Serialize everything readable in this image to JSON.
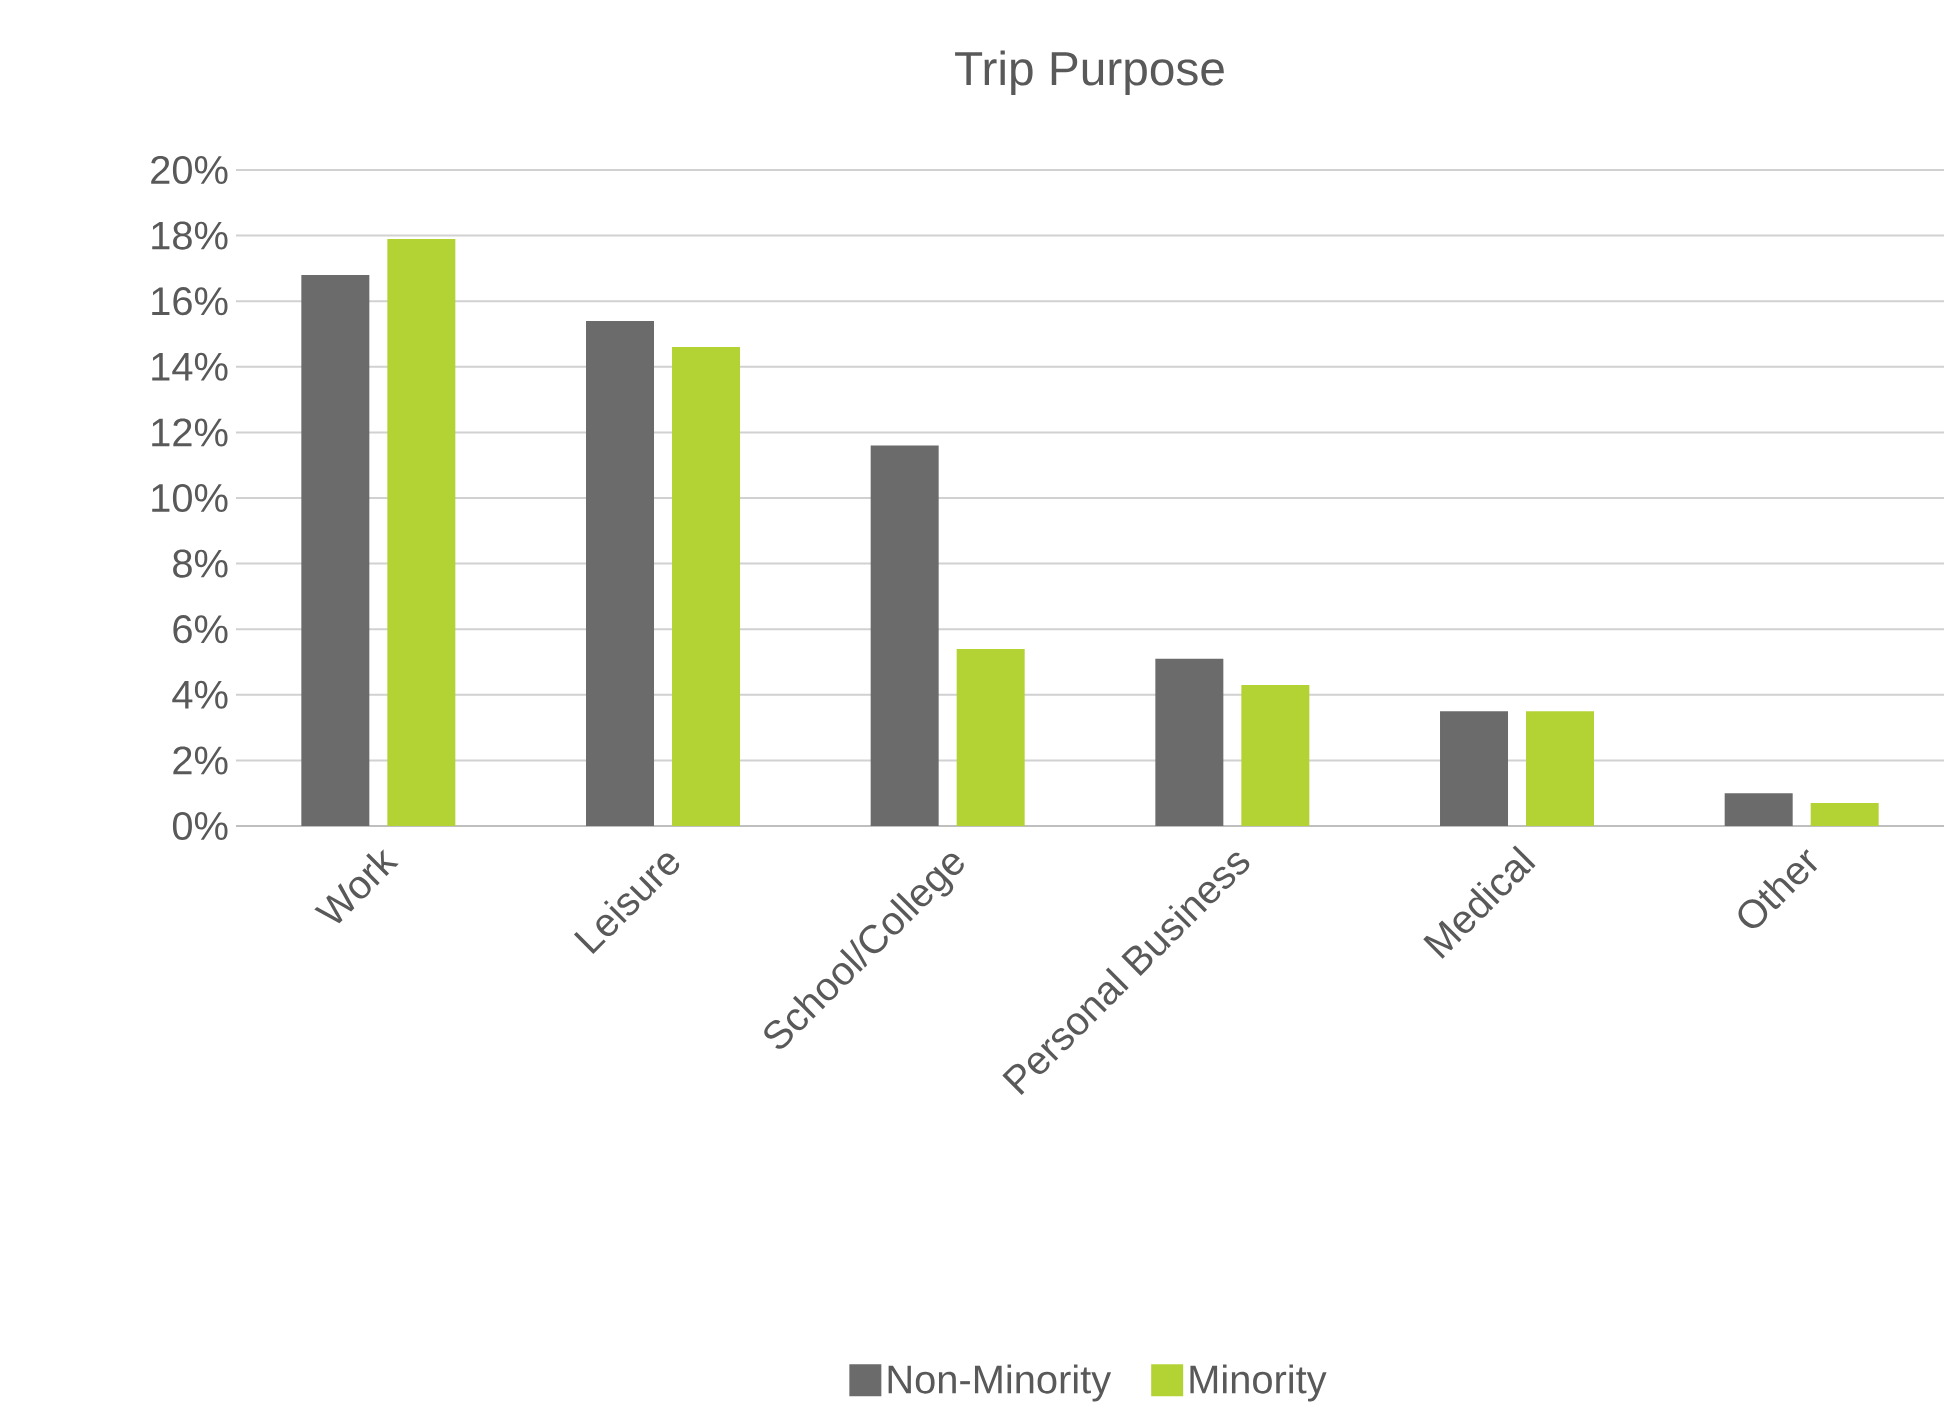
{
  "chart_data": {
    "type": "bar",
    "title": "Trip Purpose",
    "categories": [
      "Work",
      "Leisure",
      "School/College",
      "Personal Business",
      "Medical",
      "Other"
    ],
    "series": [
      {
        "name": "Non-Minority",
        "color": "#6b6b6b",
        "values": [
          16.8,
          15.4,
          11.6,
          5.1,
          3.5,
          1.0
        ]
      },
      {
        "name": "Minority",
        "color": "#b3d335",
        "values": [
          17.9,
          14.6,
          5.4,
          4.3,
          3.5,
          0.7
        ]
      }
    ],
    "ylim": [
      0,
      20
    ],
    "yticks": [
      {
        "value": 0,
        "label": "0%"
      },
      {
        "value": 2,
        "label": "2%"
      },
      {
        "value": 4,
        "label": "4%"
      },
      {
        "value": 6,
        "label": "6%"
      },
      {
        "value": 8,
        "label": "8%"
      },
      {
        "value": 10,
        "label": "10%"
      },
      {
        "value": 12,
        "label": "12%"
      },
      {
        "value": 14,
        "label": "14%"
      },
      {
        "value": 16,
        "label": "16%"
      },
      {
        "value": 18,
        "label": "18%"
      },
      {
        "value": 20,
        "label": "20%"
      }
    ],
    "grid": "y",
    "legend": "bottom"
  }
}
